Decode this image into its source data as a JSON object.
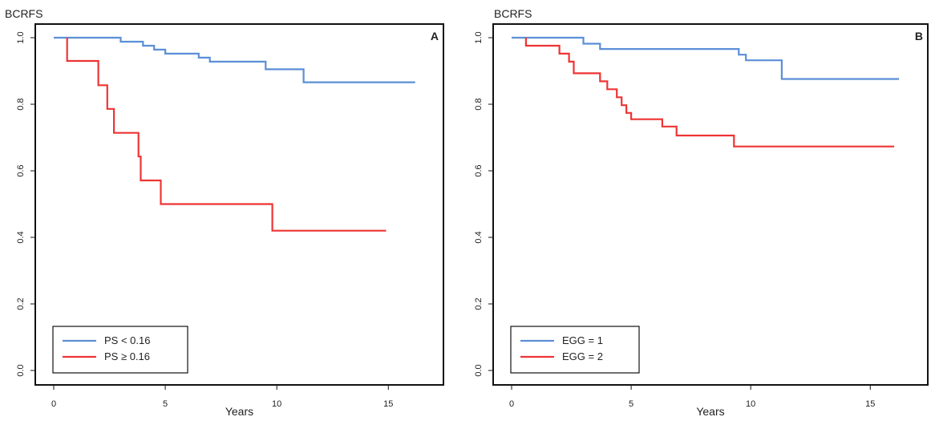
{
  "chart_data": [
    {
      "type": "line",
      "title": "",
      "panel_label": "A",
      "ylabel": "BCRFS",
      "xlabel": "Years",
      "xlim": [
        0,
        16.5
      ],
      "ylim": [
        0,
        1.0
      ],
      "x_ticks": [
        0,
        5,
        10,
        15
      ],
      "y_ticks": [
        0.0,
        0.2,
        0.4,
        0.6,
        0.8,
        1.0
      ],
      "x_tick_labels": [
        "0",
        "5",
        "10",
        "15"
      ],
      "y_tick_labels": [
        "0.0",
        "0.2",
        "0.4",
        "0.6",
        "0.8",
        "1.0"
      ],
      "grid": false,
      "legend_position": "bottom-left",
      "series": [
        {
          "name": "PS < 0.16",
          "color": "#5b8fd6",
          "step": [
            [
              0,
              1.0
            ],
            [
              3.0,
              1.0
            ],
            [
              3.0,
              0.988
            ],
            [
              4.0,
              0.988
            ],
            [
              4.0,
              0.976
            ],
            [
              4.5,
              0.976
            ],
            [
              4.5,
              0.964
            ],
            [
              5.0,
              0.964
            ],
            [
              5.0,
              0.952
            ],
            [
              6.5,
              0.952
            ],
            [
              6.5,
              0.94
            ],
            [
              7.0,
              0.94
            ],
            [
              7.0,
              0.928
            ],
            [
              9.5,
              0.928
            ],
            [
              9.5,
              0.905
            ],
            [
              11.2,
              0.905
            ],
            [
              11.2,
              0.866
            ],
            [
              16.2,
              0.866
            ]
          ]
        },
        {
          "name": "PS ≥ 0.16",
          "color": "#ee3434",
          "step": [
            [
              0.6,
              1.0
            ],
            [
              0.6,
              0.93
            ],
            [
              2.0,
              0.93
            ],
            [
              2.0,
              0.857
            ],
            [
              2.4,
              0.857
            ],
            [
              2.4,
              0.786
            ],
            [
              2.7,
              0.786
            ],
            [
              2.7,
              0.714
            ],
            [
              3.8,
              0.714
            ],
            [
              3.8,
              0.643
            ],
            [
              3.9,
              0.643
            ],
            [
              3.9,
              0.571
            ],
            [
              4.8,
              0.571
            ],
            [
              4.8,
              0.5
            ],
            [
              9.8,
              0.5
            ],
            [
              9.8,
              0.42
            ],
            [
              14.9,
              0.42
            ]
          ]
        }
      ]
    },
    {
      "type": "line",
      "title": "",
      "panel_label": "B",
      "ylabel": "BCRFS",
      "xlabel": "Years",
      "xlim": [
        0,
        16.5
      ],
      "ylim": [
        0,
        1.0
      ],
      "x_ticks": [
        0,
        5,
        10,
        15
      ],
      "y_ticks": [
        0.0,
        0.2,
        0.4,
        0.6,
        0.8,
        1.0
      ],
      "x_tick_labels": [
        "0",
        "5",
        "10",
        "15"
      ],
      "y_tick_labels": [
        "0.0",
        "0.2",
        "0.4",
        "0.6",
        "0.8",
        "1.0"
      ],
      "grid": false,
      "legend_position": "bottom-left",
      "series": [
        {
          "name": "EGG = 1",
          "color": "#5b8fd6",
          "step": [
            [
              0,
              1.0
            ],
            [
              3.0,
              1.0
            ],
            [
              3.0,
              0.982
            ],
            [
              3.7,
              0.982
            ],
            [
              3.7,
              0.966
            ],
            [
              9.5,
              0.966
            ],
            [
              9.5,
              0.949
            ],
            [
              9.8,
              0.949
            ],
            [
              9.8,
              0.932
            ],
            [
              11.3,
              0.932
            ],
            [
              11.3,
              0.876
            ],
            [
              16.2,
              0.876
            ]
          ]
        },
        {
          "name": "EGG = 2",
          "color": "#ee3434",
          "step": [
            [
              0.6,
              1.0
            ],
            [
              0.6,
              0.976
            ],
            [
              2.0,
              0.976
            ],
            [
              2.0,
              0.952
            ],
            [
              2.4,
              0.952
            ],
            [
              2.4,
              0.928
            ],
            [
              2.6,
              0.928
            ],
            [
              2.6,
              0.893
            ],
            [
              3.7,
              0.893
            ],
            [
              3.7,
              0.869
            ],
            [
              4.0,
              0.869
            ],
            [
              4.0,
              0.845
            ],
            [
              4.4,
              0.845
            ],
            [
              4.4,
              0.821
            ],
            [
              4.6,
              0.821
            ],
            [
              4.6,
              0.797
            ],
            [
              4.8,
              0.797
            ],
            [
              4.8,
              0.774
            ],
            [
              5.0,
              0.774
            ],
            [
              5.0,
              0.755
            ],
            [
              6.3,
              0.755
            ],
            [
              6.3,
              0.733
            ],
            [
              6.9,
              0.733
            ],
            [
              6.9,
              0.706
            ],
            [
              9.3,
              0.706
            ],
            [
              9.3,
              0.673
            ],
            [
              16.0,
              0.673
            ]
          ]
        }
      ]
    }
  ]
}
